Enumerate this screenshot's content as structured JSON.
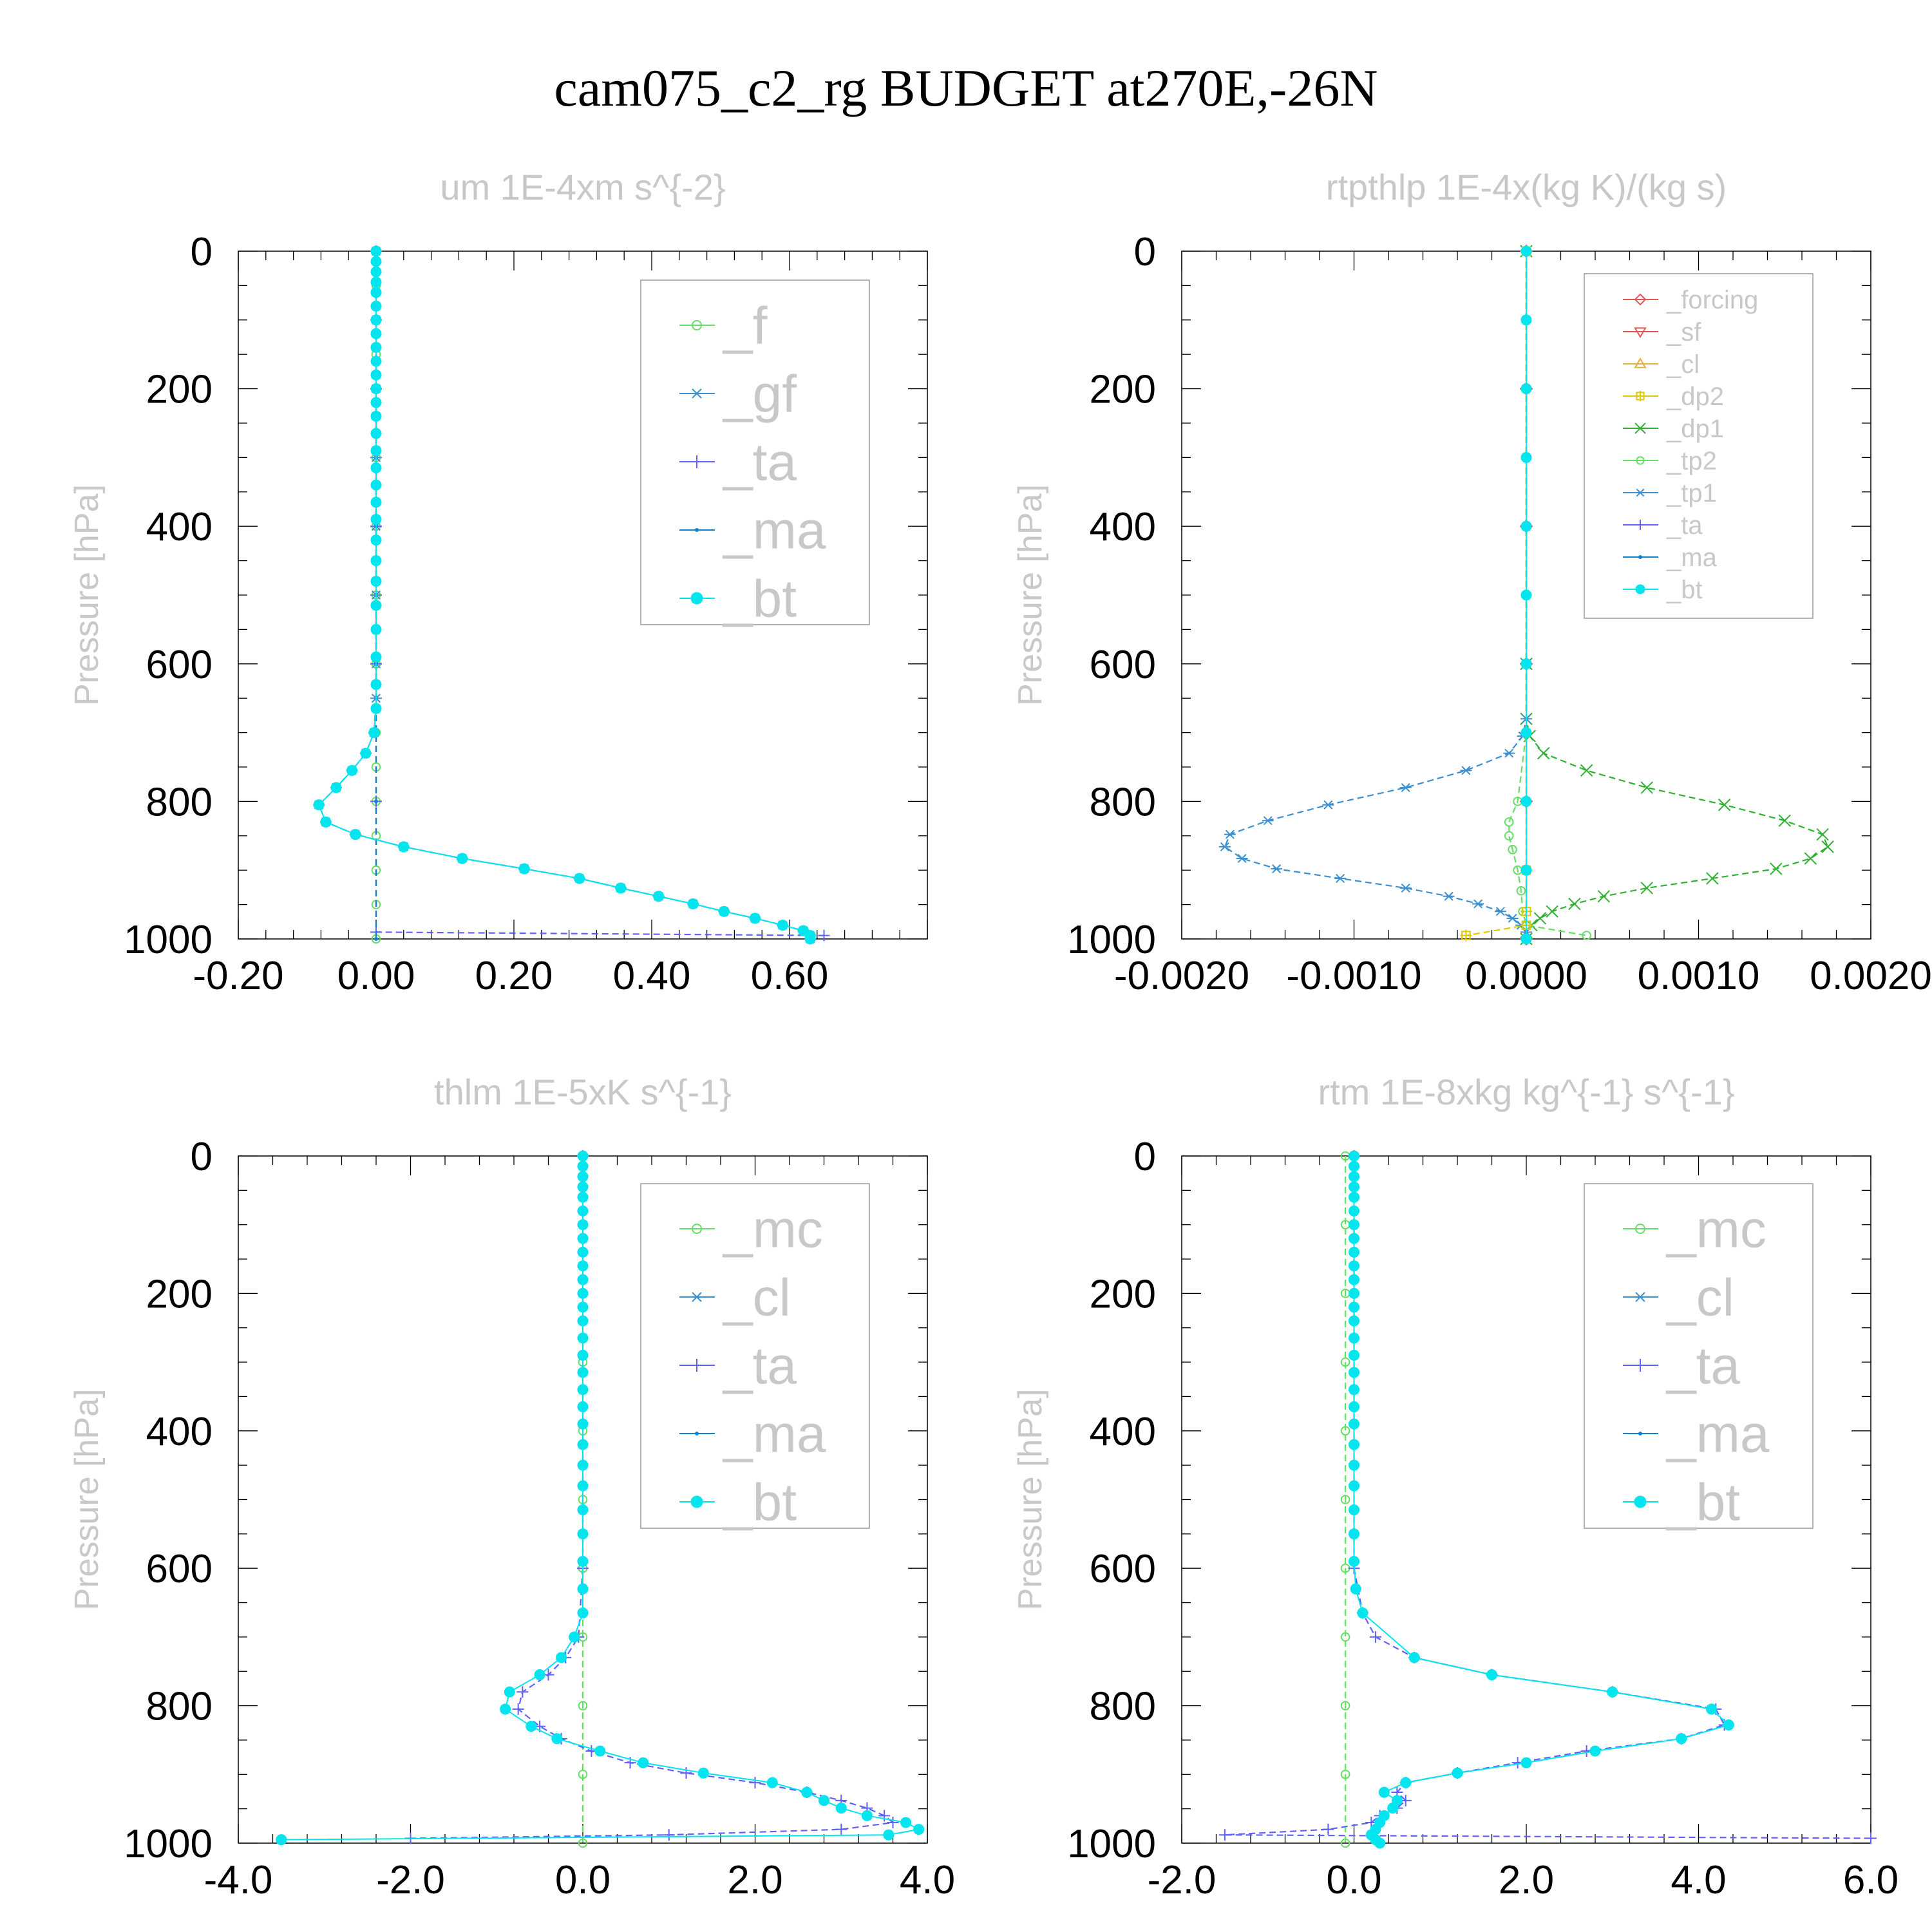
{
  "title": "cam075_c2_rg  BUDGET at270E,-26N",
  "colors": {
    "forcing": "#e05555",
    "sf": "#e05555",
    "cl": "#e0b040",
    "dp2": "#e0c800",
    "dp1": "#30b030",
    "tp2": "#66dd66",
    "tp1": "#3a8fd0",
    "ta": "#6060ff",
    "ma": "#1080d0",
    "bt": "#00e5ee",
    "f": "#66dd66",
    "gf": "#3a8fd0",
    "mc": "#66dd66",
    "cl_blue": "#3a8fd0"
  },
  "chart_data": [
    {
      "type": "line",
      "title": "um  1E-4xm s^{-2}",
      "ylabel": "Pressure [hPa]",
      "xlim": [
        -0.2,
        0.8
      ],
      "ylim": [
        0,
        1000
      ],
      "y_reversed": true,
      "xticks": [
        "-0.20",
        "0.00",
        "0.20",
        "0.40",
        "0.60"
      ],
      "xtick_values": [
        -0.2,
        0.0,
        0.2,
        0.4,
        0.6
      ],
      "yticks": [
        "0",
        "200",
        "400",
        "600",
        "800",
        "1000"
      ],
      "legend": [
        {
          "label": "_f",
          "marker": "circle",
          "color_key": "f"
        },
        {
          "label": "_gf",
          "marker": "asterisk",
          "color_key": "gf"
        },
        {
          "label": "_ta",
          "marker": "plus",
          "color_key": "ta"
        },
        {
          "label": "_ma",
          "marker": "dot",
          "color_key": "ma"
        },
        {
          "label": "_bt",
          "marker": "filled",
          "color_key": "bt"
        }
      ],
      "series": [
        {
          "name": "_f",
          "color_key": "f",
          "marker": "circle",
          "p": [
            0,
            50,
            100,
            150,
            200,
            300,
            400,
            500,
            600,
            700,
            750,
            800,
            850,
            900,
            950,
            1000
          ],
          "x": [
            0,
            0,
            0,
            0,
            0,
            0,
            0,
            0,
            0,
            0,
            0,
            0,
            0,
            0,
            0,
            0
          ]
        },
        {
          "name": "_gf",
          "color_key": "gf",
          "marker": "asterisk",
          "p": [
            0,
            100,
            200,
            300,
            400,
            500,
            600,
            650,
            700,
            730,
            755,
            780,
            805,
            830,
            848,
            866,
            883,
            898,
            912,
            926,
            938,
            949,
            960,
            970,
            980,
            988,
            995,
            1000
          ],
          "x": [
            0,
            0,
            0,
            0,
            0,
            0,
            0,
            0,
            -0.003,
            -0.015,
            -0.035,
            -0.058,
            -0.083,
            -0.073,
            -0.03,
            0.04,
            0.125,
            0.215,
            0.295,
            0.355,
            0.41,
            0.46,
            0.505,
            0.55,
            0.59,
            0.62,
            0.63,
            0.63
          ]
        },
        {
          "name": "_ta",
          "color_key": "ta",
          "marker": "plus",
          "p": [
            0,
            200,
            400,
            600,
            800,
            990,
            995
          ],
          "x": [
            0,
            0,
            0,
            0,
            0,
            0.0,
            0.65
          ]
        },
        {
          "name": "_ma",
          "color_key": "ma",
          "marker": "dot",
          "p": [
            0,
            200,
            400,
            600,
            700,
            800,
            1000
          ],
          "x": [
            0,
            0,
            0,
            0,
            0,
            0,
            0
          ]
        },
        {
          "name": "_bt",
          "color_key": "bt",
          "marker": "filled",
          "p": [
            0,
            15,
            30,
            45,
            60,
            80,
            100,
            120,
            140,
            160,
            180,
            200,
            220,
            240,
            265,
            290,
            315,
            340,
            365,
            390,
            420,
            450,
            480,
            515,
            550,
            590,
            630,
            665,
            700,
            730,
            755,
            780,
            805,
            830,
            848,
            866,
            883,
            898,
            912,
            926,
            938,
            949,
            960,
            970,
            980,
            988,
            995,
            1000
          ],
          "x": [
            0,
            0,
            0,
            0,
            0,
            0,
            0,
            0,
            0,
            0,
            0,
            0,
            0,
            0,
            0,
            0,
            0,
            0,
            0,
            0,
            0,
            0,
            0,
            0,
            0,
            0,
            0,
            0,
            -0.003,
            -0.015,
            -0.035,
            -0.058,
            -0.083,
            -0.073,
            -0.03,
            0.04,
            0.125,
            0.215,
            0.295,
            0.355,
            0.41,
            0.46,
            0.505,
            0.55,
            0.59,
            0.62,
            0.63,
            0.63
          ]
        }
      ]
    },
    {
      "type": "line",
      "title": "rtpthlp  1E-4x(kg K)/(kg s)",
      "ylabel": "Pressure [hPa]",
      "xlim": [
        -0.002,
        0.002
      ],
      "ylim": [
        0,
        1000
      ],
      "y_reversed": true,
      "xticks": [
        "-0.0020",
        "-0.0010",
        "0.0000",
        "0.0010",
        "0.0020"
      ],
      "xtick_values": [
        -0.002,
        -0.001,
        0.0,
        0.001,
        0.002
      ],
      "yticks": [
        "0",
        "200",
        "400",
        "600",
        "800",
        "1000"
      ],
      "legend": [
        {
          "label": "_forcing",
          "marker": "diamond",
          "color_key": "forcing"
        },
        {
          "label": "_sf",
          "marker": "triangle-down",
          "color_key": "sf"
        },
        {
          "label": "_cl",
          "marker": "triangle-up",
          "color_key": "cl"
        },
        {
          "label": "_dp2",
          "marker": "square-plus",
          "color_key": "dp2"
        },
        {
          "label": "_dp1",
          "marker": "cross",
          "color_key": "dp1"
        },
        {
          "label": "_tp2",
          "marker": "circle",
          "color_key": "tp2"
        },
        {
          "label": "_tp1",
          "marker": "asterisk",
          "color_key": "tp1"
        },
        {
          "label": "_ta",
          "marker": "plus",
          "color_key": "ta"
        },
        {
          "label": "_ma",
          "marker": "dot",
          "color_key": "ma"
        },
        {
          "label": "_bt",
          "marker": "filled",
          "color_key": "bt"
        }
      ],
      "series": [
        {
          "name": "_forcing",
          "color_key": "forcing",
          "marker": "diamond",
          "p": [
            0,
            200,
            400,
            600,
            800,
            1000
          ],
          "x": [
            0,
            0,
            0,
            0,
            0,
            0
          ]
        },
        {
          "name": "_dp1",
          "color_key": "dp1",
          "marker": "cross",
          "p": [
            0,
            600,
            680,
            705,
            730,
            755,
            780,
            805,
            828,
            848,
            866,
            883,
            898,
            912,
            926,
            938,
            949,
            960,
            970,
            980,
            990,
            1000
          ],
          "x": [
            0,
            0,
            0,
            2e-05,
            0.0001,
            0.00035,
            0.0007,
            0.00115,
            0.0015,
            0.00172,
            0.00175,
            0.00165,
            0.00145,
            0.00108,
            0.0007,
            0.00045,
            0.00028,
            0.00015,
            8e-05,
            3e-05,
            0.0,
            0.0
          ]
        },
        {
          "name": "_tp1",
          "color_key": "tp1",
          "marker": "asterisk",
          "p": [
            0,
            600,
            680,
            705,
            730,
            755,
            780,
            805,
            828,
            848,
            866,
            883,
            898,
            912,
            926,
            938,
            949,
            960,
            970,
            980,
            990,
            1000
          ],
          "x": [
            0,
            0,
            0,
            -2e-05,
            -0.0001,
            -0.00035,
            -0.0007,
            -0.00115,
            -0.0015,
            -0.00172,
            -0.00175,
            -0.00165,
            -0.00145,
            -0.00108,
            -0.0007,
            -0.00045,
            -0.00028,
            -0.00015,
            -8e-05,
            -3e-05,
            0.0,
            0.0
          ]
        },
        {
          "name": "_tp2",
          "color_key": "tp2",
          "marker": "circle",
          "p": [
            0,
            700,
            800,
            830,
            850,
            870,
            900,
            930,
            960,
            980,
            995
          ],
          "x": [
            0,
            0,
            -5e-05,
            -0.0001,
            -0.0001,
            -8e-05,
            -5e-05,
            -3e-05,
            -2e-05,
            0,
            0.00035
          ]
        },
        {
          "name": "_dp2",
          "color_key": "dp2",
          "marker": "square-plus",
          "p": [
            0,
            900,
            960,
            980,
            995
          ],
          "x": [
            0,
            0,
            0,
            0,
            -0.00035
          ]
        },
        {
          "name": "_bt",
          "color_key": "bt",
          "marker": "filled",
          "p": [
            0,
            100,
            200,
            300,
            400,
            500,
            600,
            700,
            800,
            900,
            1000
          ],
          "x": [
            0,
            0,
            0,
            0,
            0,
            0,
            0,
            0,
            0,
            0,
            0
          ]
        }
      ]
    },
    {
      "type": "line",
      "title": "thlm  1E-5xK s^{-1}",
      "ylabel": "Pressure [hPa]",
      "xlim": [
        -4.0,
        4.0
      ],
      "ylim": [
        0,
        1000
      ],
      "y_reversed": true,
      "xticks": [
        "-4.0",
        "-2.0",
        "0.0",
        "2.0",
        "4.0"
      ],
      "xtick_values": [
        -4.0,
        -2.0,
        0.0,
        2.0,
        4.0
      ],
      "yticks": [
        "0",
        "200",
        "400",
        "600",
        "800",
        "1000"
      ],
      "legend": [
        {
          "label": "_mc",
          "marker": "circle",
          "color_key": "mc"
        },
        {
          "label": "_cl",
          "marker": "asterisk",
          "color_key": "cl_blue"
        },
        {
          "label": "_ta",
          "marker": "plus",
          "color_key": "ta"
        },
        {
          "label": "_ma",
          "marker": "dot",
          "color_key": "ma"
        },
        {
          "label": "_bt",
          "marker": "filled",
          "color_key": "bt"
        }
      ],
      "series": [
        {
          "name": "_mc",
          "color_key": "mc",
          "marker": "circle",
          "p": [
            0,
            100,
            200,
            300,
            400,
            500,
            600,
            700,
            800,
            900,
            1000
          ],
          "x": [
            0,
            0,
            0,
            0,
            0,
            0,
            0,
            0,
            0,
            0,
            0
          ]
        },
        {
          "name": "_ta",
          "color_key": "ta",
          "marker": "plus",
          "p": [
            0,
            600,
            700,
            730,
            755,
            780,
            805,
            830,
            848,
            866,
            883,
            898,
            912,
            926,
            938,
            949,
            960,
            970,
            980,
            988,
            993
          ],
          "x": [
            0,
            0,
            -0.05,
            -0.2,
            -0.4,
            -0.7,
            -0.75,
            -0.5,
            -0.25,
            0.1,
            0.55,
            1.2,
            2.0,
            2.6,
            3.0,
            3.3,
            3.5,
            3.6,
            3.0,
            1.0,
            -2.0
          ]
        },
        {
          "name": "_bt",
          "color_key": "bt",
          "marker": "filled",
          "p": [
            0,
            15,
            30,
            45,
            60,
            80,
            100,
            120,
            140,
            160,
            180,
            200,
            220,
            240,
            265,
            290,
            315,
            340,
            365,
            390,
            420,
            450,
            480,
            515,
            550,
            590,
            630,
            665,
            700,
            730,
            755,
            780,
            805,
            830,
            848,
            866,
            883,
            898,
            912,
            926,
            938,
            949,
            960,
            970,
            980,
            988,
            995
          ],
          "x": [
            0,
            0,
            0,
            0,
            0,
            0,
            0,
            0,
            0,
            0,
            0,
            0,
            0,
            0,
            0,
            0,
            0,
            0,
            0,
            0,
            0,
            0,
            0,
            0,
            0,
            0,
            0,
            0,
            -0.1,
            -0.25,
            -0.5,
            -0.85,
            -0.9,
            -0.6,
            -0.3,
            0.2,
            0.7,
            1.4,
            2.2,
            2.6,
            2.8,
            3.0,
            3.3,
            3.75,
            3.9,
            3.55,
            -3.5
          ]
        }
      ]
    },
    {
      "type": "line",
      "title": "rtm  1E-8xkg kg^{-1} s^{-1}",
      "ylabel": "Pressure [hPa]",
      "xlim": [
        -2.0,
        6.0
      ],
      "ylim": [
        0,
        1000
      ],
      "y_reversed": true,
      "xticks": [
        "-2.0",
        "0.0",
        "2.0",
        "4.0",
        "6.0"
      ],
      "xtick_values": [
        -2.0,
        0.0,
        2.0,
        4.0,
        6.0
      ],
      "yticks": [
        "0",
        "200",
        "400",
        "600",
        "800",
        "1000"
      ],
      "legend": [
        {
          "label": "_mc",
          "marker": "circle",
          "color_key": "mc"
        },
        {
          "label": "_cl",
          "marker": "asterisk",
          "color_key": "cl_blue"
        },
        {
          "label": "_ta",
          "marker": "plus",
          "color_key": "ta"
        },
        {
          "label": "_ma",
          "marker": "dot",
          "color_key": "ma"
        },
        {
          "label": "_bt",
          "marker": "filled",
          "color_key": "bt"
        }
      ],
      "series": [
        {
          "name": "_mc",
          "color_key": "mc",
          "marker": "circle",
          "p": [
            0,
            100,
            200,
            300,
            400,
            500,
            600,
            700,
            800,
            900,
            1000
          ],
          "x": [
            -0.1,
            -0.1,
            -0.1,
            -0.1,
            -0.1,
            -0.1,
            -0.1,
            -0.1,
            -0.1,
            -0.1,
            -0.1
          ]
        },
        {
          "name": "_ta",
          "color_key": "ta",
          "marker": "plus",
          "p": [
            0,
            600,
            665,
            700,
            730,
            755,
            780,
            805,
            828,
            848,
            866,
            883,
            898,
            912,
            926,
            938,
            949,
            960,
            970,
            980,
            988,
            993
          ],
          "x": [
            0,
            0,
            0.1,
            0.25,
            0.7,
            1.6,
            3.0,
            4.2,
            4.3,
            3.8,
            2.7,
            1.9,
            1.2,
            0.6,
            0.5,
            0.6,
            0.5,
            0.3,
            0.2,
            -0.3,
            -1.5,
            6.0
          ]
        },
        {
          "name": "_bt",
          "color_key": "bt",
          "marker": "filled",
          "p": [
            0,
            15,
            30,
            45,
            60,
            80,
            100,
            120,
            140,
            160,
            180,
            200,
            220,
            240,
            265,
            290,
            315,
            340,
            365,
            390,
            420,
            450,
            480,
            515,
            550,
            590,
            630,
            665,
            730,
            755,
            780,
            805,
            828,
            848,
            866,
            883,
            898,
            912,
            926,
            938,
            949,
            960,
            970,
            980,
            988,
            995,
            1000
          ],
          "x": [
            0,
            0,
            0,
            0,
            0,
            0,
            0,
            0,
            0,
            0,
            0,
            0,
            0,
            0,
            0,
            0,
            0,
            0,
            0,
            0,
            0,
            0,
            0,
            0,
            0,
            0,
            0.02,
            0.1,
            0.7,
            1.6,
            3.0,
            4.15,
            4.35,
            3.8,
            2.8,
            2.0,
            1.2,
            0.6,
            0.35,
            0.5,
            0.45,
            0.35,
            0.3,
            0.25,
            0.2,
            0.25,
            0.3
          ]
        }
      ]
    }
  ]
}
